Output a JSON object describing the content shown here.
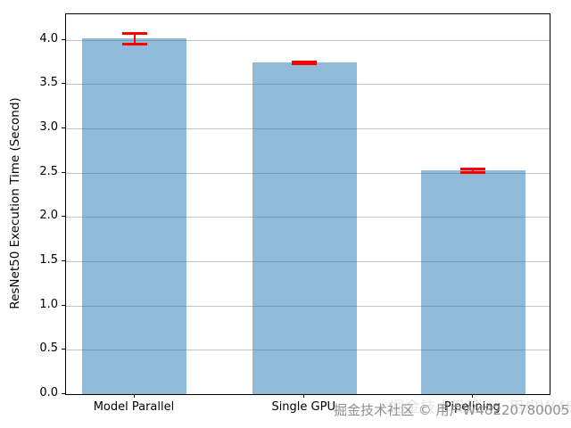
{
  "chart_data": {
    "type": "bar",
    "categories": [
      "Model Parallel",
      "Single GPU",
      "Pipelining"
    ],
    "values": [
      4.02,
      3.75,
      2.53
    ],
    "errors": [
      0.06,
      0.01,
      0.02
    ],
    "title": "",
    "xlabel": "",
    "ylabel": "ResNet50 Execution Time (Second)",
    "ylim": [
      0.0,
      4.29
    ],
    "yticks": [
      0.0,
      0.5,
      1.0,
      1.5,
      2.0,
      2.5,
      3.0,
      3.5,
      4.0
    ],
    "ytick_labels": [
      "0.0",
      "0.5",
      "1.0",
      "1.5",
      "2.0",
      "2.5",
      "3.0",
      "3.5",
      "4.0"
    ],
    "grid": "horizontal",
    "legend": "none",
    "bar_color": "#1f77b4",
    "bar_alpha": 0.5,
    "bar_fill_rendered": "#8fbbd9",
    "error_color": "#ff0000",
    "grid_color": "#c3c3c3"
  },
  "watermark": {
    "text": "掘金技术社区 © 用户W48220780005",
    "color": "#8f8f8f"
  }
}
